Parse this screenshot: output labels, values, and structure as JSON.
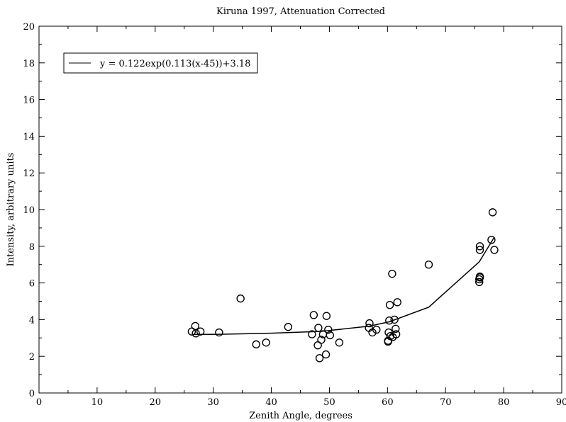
{
  "chart_data": {
    "type": "scatter",
    "title": "Kiruna 1997, Attenuation Corrected",
    "xlabel": "Zenith Angle, degrees",
    "ylabel": "Intensity, arbitrary units",
    "xlim": [
      0,
      90
    ],
    "ylim": [
      0,
      20
    ],
    "xticks": [
      0,
      10,
      20,
      30,
      40,
      50,
      60,
      70,
      80,
      90
    ],
    "yticks": [
      0,
      2,
      4,
      6,
      8,
      10,
      12,
      14,
      16,
      18,
      20
    ],
    "xtick_labels": [
      "0",
      "10",
      "20",
      "30",
      "40",
      "50",
      "60",
      "70",
      "80",
      "90"
    ],
    "ytick_labels": [
      "0",
      "2",
      "4",
      "6",
      "8",
      "10",
      "12",
      "14",
      "16",
      "18",
      "20"
    ],
    "grid": false,
    "legend_position": "top-left",
    "legend": [
      {
        "label": "y = 0.122exp(0.113(x-45))+3.18",
        "style": "line"
      }
    ],
    "series": [
      {
        "kind": "points",
        "marker": "open-circle",
        "x": [
          26.3,
          26.9,
          27.0,
          27.8,
          31.0,
          34.7,
          37.4,
          39.1,
          42.9,
          47.0,
          47.3,
          48.0,
          48.1,
          48.3,
          48.6,
          48.9,
          49.4,
          49.5,
          49.8,
          50.1,
          51.7,
          56.8,
          56.9,
          57.4,
          58.1,
          60.1,
          60.1,
          60.2,
          60.3,
          60.4,
          60.5,
          60.8,
          60.9,
          61.2,
          61.4,
          61.5,
          61.7,
          67.1,
          75.8,
          75.8,
          75.9,
          75.9,
          75.9,
          75.9,
          77.9,
          78.1,
          78.4
        ],
        "y": [
          3.35,
          3.65,
          3.25,
          3.35,
          3.3,
          5.15,
          2.65,
          2.75,
          3.6,
          3.2,
          4.25,
          2.6,
          3.55,
          1.9,
          2.9,
          3.2,
          2.1,
          4.2,
          3.45,
          3.15,
          2.75,
          3.55,
          3.8,
          3.3,
          3.45,
          2.8,
          2.85,
          3.3,
          3.95,
          4.8,
          3.1,
          6.5,
          3.05,
          4.0,
          3.5,
          3.2,
          4.95,
          7.0,
          6.05,
          6.2,
          6.35,
          7.8,
          8.0,
          6.3,
          8.35,
          9.85,
          7.8
        ]
      },
      {
        "kind": "line",
        "x": [
          26.3,
          31.0,
          39.1,
          48.6,
          56.8,
          60.3,
          67.1,
          75.8,
          78.4
        ],
        "y": [
          3.19,
          3.2,
          3.25,
          3.36,
          3.64,
          3.88,
          4.68,
          7.15,
          8.5
        ]
      }
    ]
  }
}
